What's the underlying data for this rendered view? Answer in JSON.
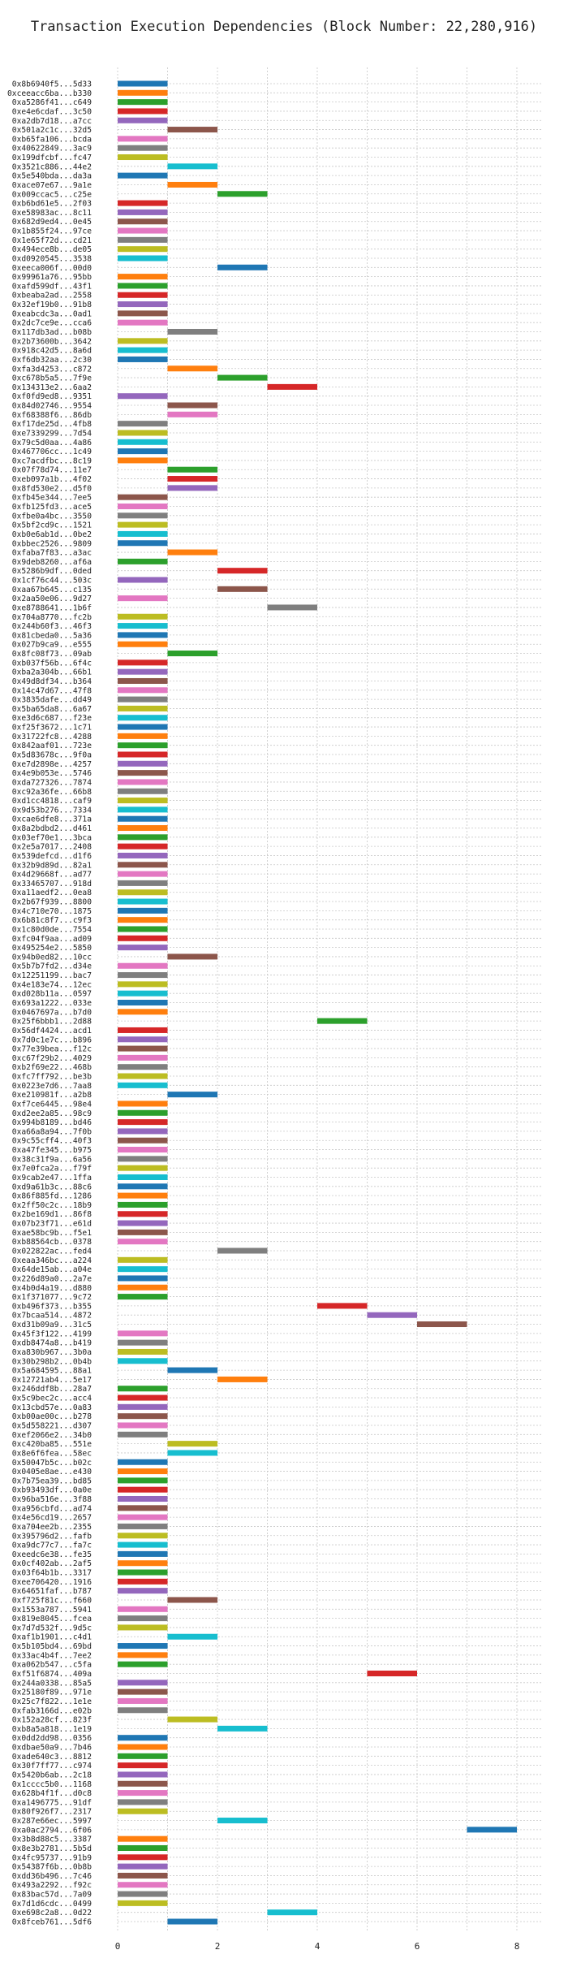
{
  "chart_data": {
    "type": "bar",
    "orientation": "horizontal",
    "title": "Transaction Execution Dependencies (Block Number: 22,280,916)",
    "xlabel": "",
    "ylabel": "",
    "xlim": [
      0,
      8.5
    ],
    "xticks": [
      "0",
      "2",
      "4",
      "6",
      "8"
    ],
    "grid": true,
    "palette": [
      "#1f77b4",
      "#ff7f0e",
      "#2ca02c",
      "#d62728",
      "#9467bd",
      "#8c564b",
      "#e377c2",
      "#7f7f7f",
      "#bcbd22",
      "#17becf"
    ],
    "bars": [
      {
        "label": "0x8b6940f5...5d33",
        "start": 0,
        "end": 1
      },
      {
        "label": "0xceeacc6ba...b330",
        "start": 0,
        "end": 1
      },
      {
        "label": "0xa5286f41...c649",
        "start": 0,
        "end": 1
      },
      {
        "label": "0xe4e6cdaf...3c50",
        "start": 0,
        "end": 1
      },
      {
        "label": "0xa2db7d18...a7cc",
        "start": 0,
        "end": 1
      },
      {
        "label": "0x501a2c1c...32d5",
        "start": 1,
        "end": 2
      },
      {
        "label": "0xb65fa106...bcda",
        "start": 0,
        "end": 1
      },
      {
        "label": "0x40622849...3ac9",
        "start": 0,
        "end": 1
      },
      {
        "label": "0x199dfcbf...fc47",
        "start": 0,
        "end": 1
      },
      {
        "label": "0x3521c886...44e2",
        "start": 1,
        "end": 2
      },
      {
        "label": "0x5e540bda...da3a",
        "start": 0,
        "end": 1
      },
      {
        "label": "0xace07e67...9a1e",
        "start": 1,
        "end": 2
      },
      {
        "label": "0x009ccac5...c25e",
        "start": 2,
        "end": 3
      },
      {
        "label": "0xb6bd61e5...2f03",
        "start": 0,
        "end": 1
      },
      {
        "label": "0xe58983ac...8c11",
        "start": 0,
        "end": 1
      },
      {
        "label": "0x682d9ed4...0e45",
        "start": 0,
        "end": 1
      },
      {
        "label": "0x1b855f24...97ce",
        "start": 0,
        "end": 1
      },
      {
        "label": "0x1e65f72d...cd21",
        "start": 0,
        "end": 1
      },
      {
        "label": "0x494ece8b...de05",
        "start": 0,
        "end": 1
      },
      {
        "label": "0xd0920545...3538",
        "start": 0,
        "end": 1
      },
      {
        "label": "0xeeca006f...00d0",
        "start": 2,
        "end": 3
      },
      {
        "label": "0x99961a76...95bb",
        "start": 0,
        "end": 1
      },
      {
        "label": "0xafd599df...43f1",
        "start": 0,
        "end": 1
      },
      {
        "label": "0xbeaba2ad...2558",
        "start": 0,
        "end": 1
      },
      {
        "label": "0x32ef19b0...91b8",
        "start": 0,
        "end": 1
      },
      {
        "label": "0xeabcdc3a...0ad1",
        "start": 0,
        "end": 1
      },
      {
        "label": "0x2dc7ce9e...cca6",
        "start": 0,
        "end": 1
      },
      {
        "label": "0x117db3ad...b08b",
        "start": 1,
        "end": 2
      },
      {
        "label": "0x2b73600b...3642",
        "start": 0,
        "end": 1
      },
      {
        "label": "0x918c42d5...8a6d",
        "start": 0,
        "end": 1
      },
      {
        "label": "0xf6db32aa...2c30",
        "start": 0,
        "end": 1
      },
      {
        "label": "0xfa3d4253...c872",
        "start": 1,
        "end": 2
      },
      {
        "label": "0xc678b5a5...7f9e",
        "start": 2,
        "end": 3
      },
      {
        "label": "0x134313e2...6aa2",
        "start": 3,
        "end": 4
      },
      {
        "label": "0xf0fd9ed8...9351",
        "start": 0,
        "end": 1
      },
      {
        "label": "0x84d02746...9554",
        "start": 1,
        "end": 2
      },
      {
        "label": "0xf68388f6...86db",
        "start": 1,
        "end": 2
      },
      {
        "label": "0xf17de25d...4fb8",
        "start": 0,
        "end": 1
      },
      {
        "label": "0xe7339299...7d54",
        "start": 0,
        "end": 1
      },
      {
        "label": "0x79c5d0aa...4a86",
        "start": 0,
        "end": 1
      },
      {
        "label": "0x467706cc...1c49",
        "start": 0,
        "end": 1
      },
      {
        "label": "0xc7acdfbc...8c19",
        "start": 0,
        "end": 1
      },
      {
        "label": "0x07f78d74...11e7",
        "start": 1,
        "end": 2
      },
      {
        "label": "0xeb097a1b...4f02",
        "start": 1,
        "end": 2
      },
      {
        "label": "0x8fd530e2...d5f0",
        "start": 1,
        "end": 2
      },
      {
        "label": "0xfb45e344...7ee5",
        "start": 0,
        "end": 1
      },
      {
        "label": "0xfb125fd3...ace5",
        "start": 0,
        "end": 1
      },
      {
        "label": "0xfbe0a4bc...3550",
        "start": 0,
        "end": 1
      },
      {
        "label": "0x5bf2cd9c...1521",
        "start": 0,
        "end": 1
      },
      {
        "label": "0xb0e6ab1d...0be2",
        "start": 0,
        "end": 1
      },
      {
        "label": "0xbbec2526...9809",
        "start": 0,
        "end": 1
      },
      {
        "label": "0xfaba7f83...a3ac",
        "start": 1,
        "end": 2
      },
      {
        "label": "0x9deb8260...af6a",
        "start": 0,
        "end": 1
      },
      {
        "label": "0x5286b9df...0ded",
        "start": 2,
        "end": 3
      },
      {
        "label": "0x1cf76c44...503c",
        "start": 0,
        "end": 1
      },
      {
        "label": "0xaa67b645...c135",
        "start": 2,
        "end": 3
      },
      {
        "label": "0x2aa50e06...9d27",
        "start": 0,
        "end": 1
      },
      {
        "label": "0xe8788641...1b6f",
        "start": 3,
        "end": 4
      },
      {
        "label": "0x704a8770...fc2b",
        "start": 0,
        "end": 1
      },
      {
        "label": "0x244b60f3...46f3",
        "start": 0,
        "end": 1
      },
      {
        "label": "0x81cbeda0...5a36",
        "start": 0,
        "end": 1
      },
      {
        "label": "0x027b9ca9...e555",
        "start": 0,
        "end": 1
      },
      {
        "label": "0x8fc08f73...09ab",
        "start": 1,
        "end": 2
      },
      {
        "label": "0xb037f56b...6f4c",
        "start": 0,
        "end": 1
      },
      {
        "label": "0xba2a304b...66b1",
        "start": 0,
        "end": 1
      },
      {
        "label": "0x49d8df34...b364",
        "start": 0,
        "end": 1
      },
      {
        "label": "0x14c47d67...47f8",
        "start": 0,
        "end": 1
      },
      {
        "label": "0x3835dafe...dd49",
        "start": 0,
        "end": 1
      },
      {
        "label": "0x5ba65da8...6a67",
        "start": 0,
        "end": 1
      },
      {
        "label": "0xe3d6c687...f23e",
        "start": 0,
        "end": 1
      },
      {
        "label": "0xf25f3672...1c71",
        "start": 0,
        "end": 1
      },
      {
        "label": "0x31722fc8...4288",
        "start": 0,
        "end": 1
      },
      {
        "label": "0x842aaf01...723e",
        "start": 0,
        "end": 1
      },
      {
        "label": "0x5d83678c...9f0a",
        "start": 0,
        "end": 1
      },
      {
        "label": "0xe7d2898e...4257",
        "start": 0,
        "end": 1
      },
      {
        "label": "0x4e9b053e...5746",
        "start": 0,
        "end": 1
      },
      {
        "label": "0xda727326...7874",
        "start": 0,
        "end": 1
      },
      {
        "label": "0xc92a36fe...66b8",
        "start": 0,
        "end": 1
      },
      {
        "label": "0xd1cc4818...caf9",
        "start": 0,
        "end": 1
      },
      {
        "label": "0x9d53b276...7334",
        "start": 0,
        "end": 1
      },
      {
        "label": "0xcae6dfe8...371a",
        "start": 0,
        "end": 1
      },
      {
        "label": "0x8a2bdbd2...d461",
        "start": 0,
        "end": 1
      },
      {
        "label": "0x03ef70e1...3bca",
        "start": 0,
        "end": 1
      },
      {
        "label": "0x2e5a7017...2408",
        "start": 0,
        "end": 1
      },
      {
        "label": "0x539defcd...d1f6",
        "start": 0,
        "end": 1
      },
      {
        "label": "0x32b9d89d...82a1",
        "start": 0,
        "end": 1
      },
      {
        "label": "0x4d29668f...ad77",
        "start": 0,
        "end": 1
      },
      {
        "label": "0x33465707...918d",
        "start": 0,
        "end": 1
      },
      {
        "label": "0xa11aedf2...0ea8",
        "start": 0,
        "end": 1
      },
      {
        "label": "0x2b67f939...8800",
        "start": 0,
        "end": 1
      },
      {
        "label": "0x4c710e70...1875",
        "start": 0,
        "end": 1
      },
      {
        "label": "0x6b81c8f7...c9f3",
        "start": 0,
        "end": 1
      },
      {
        "label": "0x1c80d0de...7554",
        "start": 0,
        "end": 1
      },
      {
        "label": "0xfc04f9aa...ad09",
        "start": 0,
        "end": 1
      },
      {
        "label": "0x495254e2...5850",
        "start": 0,
        "end": 1
      },
      {
        "label": "0x94b0ed82...10cc",
        "start": 1,
        "end": 2
      },
      {
        "label": "0x5b7b7fd2...d34e",
        "start": 0,
        "end": 1
      },
      {
        "label": "0x12251199...bac7",
        "start": 0,
        "end": 1
      },
      {
        "label": "0x4e183e74...12ec",
        "start": 0,
        "end": 1
      },
      {
        "label": "0xd028b11a...0597",
        "start": 0,
        "end": 1
      },
      {
        "label": "0x693a1222...033e",
        "start": 0,
        "end": 1
      },
      {
        "label": "0x0467697a...b7d0",
        "start": 0,
        "end": 1
      },
      {
        "label": "0x25f6bbb1...2d88",
        "start": 4,
        "end": 5
      },
      {
        "label": "0x56df4424...acd1",
        "start": 0,
        "end": 1
      },
      {
        "label": "0x7d0c1e7c...b896",
        "start": 0,
        "end": 1
      },
      {
        "label": "0x77e39bea...f12c",
        "start": 0,
        "end": 1
      },
      {
        "label": "0xc67f29b2...4029",
        "start": 0,
        "end": 1
      },
      {
        "label": "0xb2f69e22...468b",
        "start": 0,
        "end": 1
      },
      {
        "label": "0xfc7ff792...be3b",
        "start": 0,
        "end": 1
      },
      {
        "label": "0x0223e7d6...7aa8",
        "start": 0,
        "end": 1
      },
      {
        "label": "0xe210981f...a2b8",
        "start": 1,
        "end": 2
      },
      {
        "label": "0xf7ce6445...98e4",
        "start": 0,
        "end": 1
      },
      {
        "label": "0xd2ee2a85...98c9",
        "start": 0,
        "end": 1
      },
      {
        "label": "0x994b8189...bd46",
        "start": 0,
        "end": 1
      },
      {
        "label": "0xa66a8a94...7f0b",
        "start": 0,
        "end": 1
      },
      {
        "label": "0x9c55cff4...40f3",
        "start": 0,
        "end": 1
      },
      {
        "label": "0xa47fe345...b975",
        "start": 0,
        "end": 1
      },
      {
        "label": "0x38c31f9a...6a56",
        "start": 0,
        "end": 1
      },
      {
        "label": "0x7e0fca2a...f79f",
        "start": 0,
        "end": 1
      },
      {
        "label": "0x9cab2e47...1ffa",
        "start": 0,
        "end": 1
      },
      {
        "label": "0xd9a61b3c...88c6",
        "start": 0,
        "end": 1
      },
      {
        "label": "0x86f885fd...1286",
        "start": 0,
        "end": 1
      },
      {
        "label": "0x2ff50c2c...18b9",
        "start": 0,
        "end": 1
      },
      {
        "label": "0x2be169d1...86f8",
        "start": 0,
        "end": 1
      },
      {
        "label": "0x07b23f71...e61d",
        "start": 0,
        "end": 1
      },
      {
        "label": "0xae58bc9b...f5e1",
        "start": 0,
        "end": 1
      },
      {
        "label": "0xb88564cb...0378",
        "start": 0,
        "end": 1
      },
      {
        "label": "0x022822ac...fed4",
        "start": 2,
        "end": 3
      },
      {
        "label": "0xeaa346bc...a224",
        "start": 0,
        "end": 1
      },
      {
        "label": "0x64de15ab...a04e",
        "start": 0,
        "end": 1
      },
      {
        "label": "0x226d89a0...2a7e",
        "start": 0,
        "end": 1
      },
      {
        "label": "0x4b0d4a19...d880",
        "start": 0,
        "end": 1
      },
      {
        "label": "0x1f371077...9c72",
        "start": 0,
        "end": 1
      },
      {
        "label": "0xb496f373...b355",
        "start": 4,
        "end": 5
      },
      {
        "label": "0x7bcaa514...4872",
        "start": 5,
        "end": 6
      },
      {
        "label": "0xd31b09a9...31c5",
        "start": 6,
        "end": 7
      },
      {
        "label": "0x45f3f122...4199",
        "start": 0,
        "end": 1
      },
      {
        "label": "0xdb8474a8...b419",
        "start": 0,
        "end": 1
      },
      {
        "label": "0xa830b967...3b0a",
        "start": 0,
        "end": 1
      },
      {
        "label": "0x30b298b2...0b4b",
        "start": 0,
        "end": 1
      },
      {
        "label": "0x5a684595...88a1",
        "start": 1,
        "end": 2
      },
      {
        "label": "0x12721ab4...5e17",
        "start": 2,
        "end": 3
      },
      {
        "label": "0x246ddf8b...28a7",
        "start": 0,
        "end": 1
      },
      {
        "label": "0x5c9bec2c...acc4",
        "start": 0,
        "end": 1
      },
      {
        "label": "0x13cbd57e...0a83",
        "start": 0,
        "end": 1
      },
      {
        "label": "0xb00ae00c...b278",
        "start": 0,
        "end": 1
      },
      {
        "label": "0x5d558221...d307",
        "start": 0,
        "end": 1
      },
      {
        "label": "0xef2066e2...34b0",
        "start": 0,
        "end": 1
      },
      {
        "label": "0xc420ba85...551e",
        "start": 1,
        "end": 2
      },
      {
        "label": "0x8e6f6fea...58ec",
        "start": 1,
        "end": 2
      },
      {
        "label": "0x50047b5c...b02c",
        "start": 0,
        "end": 1
      },
      {
        "label": "0x0405e8ae...e430",
        "start": 0,
        "end": 1
      },
      {
        "label": "0x7b75ea39...bd85",
        "start": 0,
        "end": 1
      },
      {
        "label": "0xb93493df...0a0e",
        "start": 0,
        "end": 1
      },
      {
        "label": "0x96ba516e...3f88",
        "start": 0,
        "end": 1
      },
      {
        "label": "0xa956cbfd...ad74",
        "start": 0,
        "end": 1
      },
      {
        "label": "0x4e56cd19...2657",
        "start": 0,
        "end": 1
      },
      {
        "label": "0xa704ee2b...2355",
        "start": 0,
        "end": 1
      },
      {
        "label": "0x395796d2...fafb",
        "start": 0,
        "end": 1
      },
      {
        "label": "0xa9dc77c7...fa7c",
        "start": 0,
        "end": 1
      },
      {
        "label": "0xeedc6e38...fe35",
        "start": 0,
        "end": 1
      },
      {
        "label": "0x0cf402ab...2af5",
        "start": 0,
        "end": 1
      },
      {
        "label": "0x03f64b1b...3317",
        "start": 0,
        "end": 1
      },
      {
        "label": "0xee706420...1916",
        "start": 0,
        "end": 1
      },
      {
        "label": "0x64651faf...b787",
        "start": 0,
        "end": 1
      },
      {
        "label": "0xf725f81c...f660",
        "start": 1,
        "end": 2
      },
      {
        "label": "0x1553a787...5941",
        "start": 0,
        "end": 1
      },
      {
        "label": "0x819e8045...fcea",
        "start": 0,
        "end": 1
      },
      {
        "label": "0x7d7d532f...9d5c",
        "start": 0,
        "end": 1
      },
      {
        "label": "0xaf1b1901...c4d1",
        "start": 1,
        "end": 2
      },
      {
        "label": "0x5b105bd4...69bd",
        "start": 0,
        "end": 1
      },
      {
        "label": "0x33ac4b4f...7ee2",
        "start": 0,
        "end": 1
      },
      {
        "label": "0xa062b547...c5fa",
        "start": 0,
        "end": 1
      },
      {
        "label": "0xf51f6874...409a",
        "start": 5,
        "end": 6
      },
      {
        "label": "0x244a0338...85a5",
        "start": 0,
        "end": 1
      },
      {
        "label": "0x25180f89...971e",
        "start": 0,
        "end": 1
      },
      {
        "label": "0x25c7f822...1e1e",
        "start": 0,
        "end": 1
      },
      {
        "label": "0xfab3166d...e02b",
        "start": 0,
        "end": 1
      },
      {
        "label": "0x152a28cf...823f",
        "start": 1,
        "end": 2
      },
      {
        "label": "0xb8a5a818...1e19",
        "start": 2,
        "end": 3
      },
      {
        "label": "0x0dd2dd98...0356",
        "start": 0,
        "end": 1
      },
      {
        "label": "0xdbae50a9...7b46",
        "start": 0,
        "end": 1
      },
      {
        "label": "0xade640c3...8812",
        "start": 0,
        "end": 1
      },
      {
        "label": "0x30f7ff77...c974",
        "start": 0,
        "end": 1
      },
      {
        "label": "0x5420b6ab...2c18",
        "start": 0,
        "end": 1
      },
      {
        "label": "0x1cccc5b0...1168",
        "start": 0,
        "end": 1
      },
      {
        "label": "0x628b4f1f...d0c8",
        "start": 0,
        "end": 1
      },
      {
        "label": "0xa1496775...91df",
        "start": 0,
        "end": 1
      },
      {
        "label": "0x80f926f7...2317",
        "start": 0,
        "end": 1
      },
      {
        "label": "0x287e66ec...5997",
        "start": 2,
        "end": 3
      },
      {
        "label": "0xa0ac2794...6f06",
        "start": 7,
        "end": 8
      },
      {
        "label": "0x3b8d88c5...3387",
        "start": 0,
        "end": 1
      },
      {
        "label": "0x8e3b2781...5b5d",
        "start": 0,
        "end": 1
      },
      {
        "label": "0x4fc95737...91b9",
        "start": 0,
        "end": 1
      },
      {
        "label": "0x54387f6b...0b8b",
        "start": 0,
        "end": 1
      },
      {
        "label": "0xdd36b496...7c46",
        "start": 0,
        "end": 1
      },
      {
        "label": "0x493a2292...f92c",
        "start": 0,
        "end": 1
      },
      {
        "label": "0x83bac57d...7a09",
        "start": 0,
        "end": 1
      },
      {
        "label": "0x7d1d6cdc...0499",
        "start": 0,
        "end": 1
      },
      {
        "label": "0xe698c2a8...0d22",
        "start": 3,
        "end": 4
      },
      {
        "label": "0x8fceb761...5df6",
        "start": 1,
        "end": 2
      }
    ]
  }
}
